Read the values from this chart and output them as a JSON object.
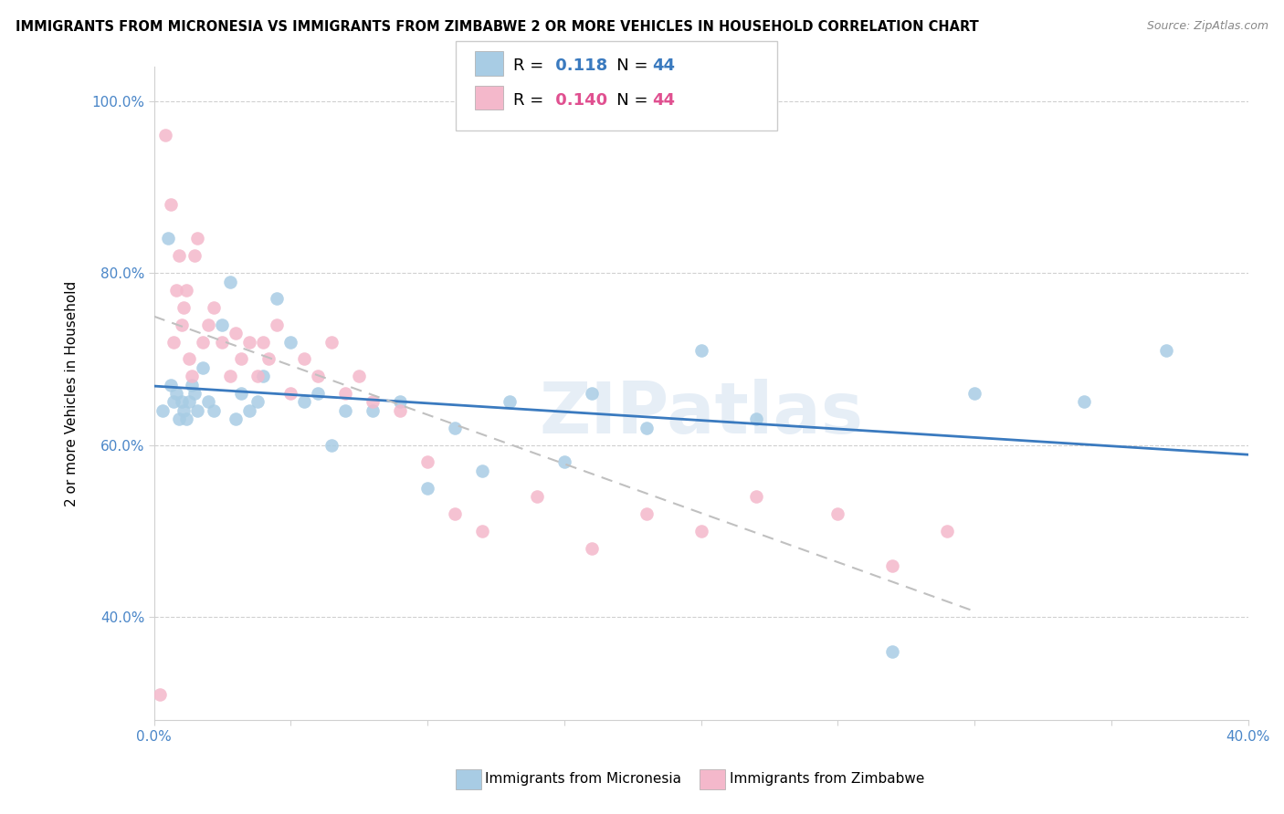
{
  "title": "IMMIGRANTS FROM MICRONESIA VS IMMIGRANTS FROM ZIMBABWE 2 OR MORE VEHICLES IN HOUSEHOLD CORRELATION CHART",
  "source": "Source: ZipAtlas.com",
  "ylabel": "2 or more Vehicles in Household",
  "xlim": [
    0.0,
    0.4
  ],
  "ylim": [
    0.28,
    1.04
  ],
  "xticks": [
    0.0,
    0.05,
    0.1,
    0.15,
    0.2,
    0.25,
    0.3,
    0.35,
    0.4
  ],
  "xticklabels": [
    "0.0%",
    "",
    "",
    "",
    "",
    "",
    "",
    "",
    "40.0%"
  ],
  "yticks": [
    0.4,
    0.6,
    0.8,
    1.0
  ],
  "yticklabels": [
    "40.0%",
    "60.0%",
    "80.0%",
    "100.0%"
  ],
  "watermark": "ZIPatlas",
  "R_micronesia": 0.118,
  "R_zimbabwe": 0.14,
  "N": 44,
  "blue_color": "#a8cce4",
  "pink_color": "#f4b8cb",
  "blue_line_color": "#3a7abf",
  "pink_line_color": "#c0c0c0",
  "micronesia_x": [
    0.003,
    0.005,
    0.006,
    0.007,
    0.008,
    0.009,
    0.01,
    0.011,
    0.012,
    0.013,
    0.014,
    0.015,
    0.016,
    0.018,
    0.02,
    0.022,
    0.025,
    0.028,
    0.03,
    0.032,
    0.035,
    0.038,
    0.04,
    0.045,
    0.05,
    0.055,
    0.06,
    0.065,
    0.07,
    0.08,
    0.09,
    0.1,
    0.11,
    0.12,
    0.13,
    0.15,
    0.16,
    0.18,
    0.2,
    0.22,
    0.27,
    0.3,
    0.34,
    0.37
  ],
  "micronesia_y": [
    0.64,
    0.84,
    0.67,
    0.65,
    0.66,
    0.63,
    0.65,
    0.64,
    0.63,
    0.65,
    0.67,
    0.66,
    0.64,
    0.69,
    0.65,
    0.64,
    0.74,
    0.79,
    0.63,
    0.66,
    0.64,
    0.65,
    0.68,
    0.77,
    0.72,
    0.65,
    0.66,
    0.6,
    0.64,
    0.64,
    0.65,
    0.55,
    0.62,
    0.57,
    0.65,
    0.58,
    0.66,
    0.62,
    0.71,
    0.63,
    0.36,
    0.66,
    0.65,
    0.71
  ],
  "zimbabwe_x": [
    0.002,
    0.004,
    0.006,
    0.007,
    0.008,
    0.009,
    0.01,
    0.011,
    0.012,
    0.013,
    0.014,
    0.015,
    0.016,
    0.018,
    0.02,
    0.022,
    0.025,
    0.028,
    0.03,
    0.032,
    0.035,
    0.038,
    0.04,
    0.042,
    0.045,
    0.05,
    0.055,
    0.06,
    0.065,
    0.07,
    0.075,
    0.08,
    0.09,
    0.1,
    0.11,
    0.12,
    0.14,
    0.16,
    0.18,
    0.2,
    0.22,
    0.25,
    0.27,
    0.29
  ],
  "zimbabwe_y": [
    0.31,
    0.96,
    0.88,
    0.72,
    0.78,
    0.82,
    0.74,
    0.76,
    0.78,
    0.7,
    0.68,
    0.82,
    0.84,
    0.72,
    0.74,
    0.76,
    0.72,
    0.68,
    0.73,
    0.7,
    0.72,
    0.68,
    0.72,
    0.7,
    0.74,
    0.66,
    0.7,
    0.68,
    0.72,
    0.66,
    0.68,
    0.65,
    0.64,
    0.58,
    0.52,
    0.5,
    0.54,
    0.48,
    0.52,
    0.5,
    0.54,
    0.52,
    0.46,
    0.5
  ]
}
